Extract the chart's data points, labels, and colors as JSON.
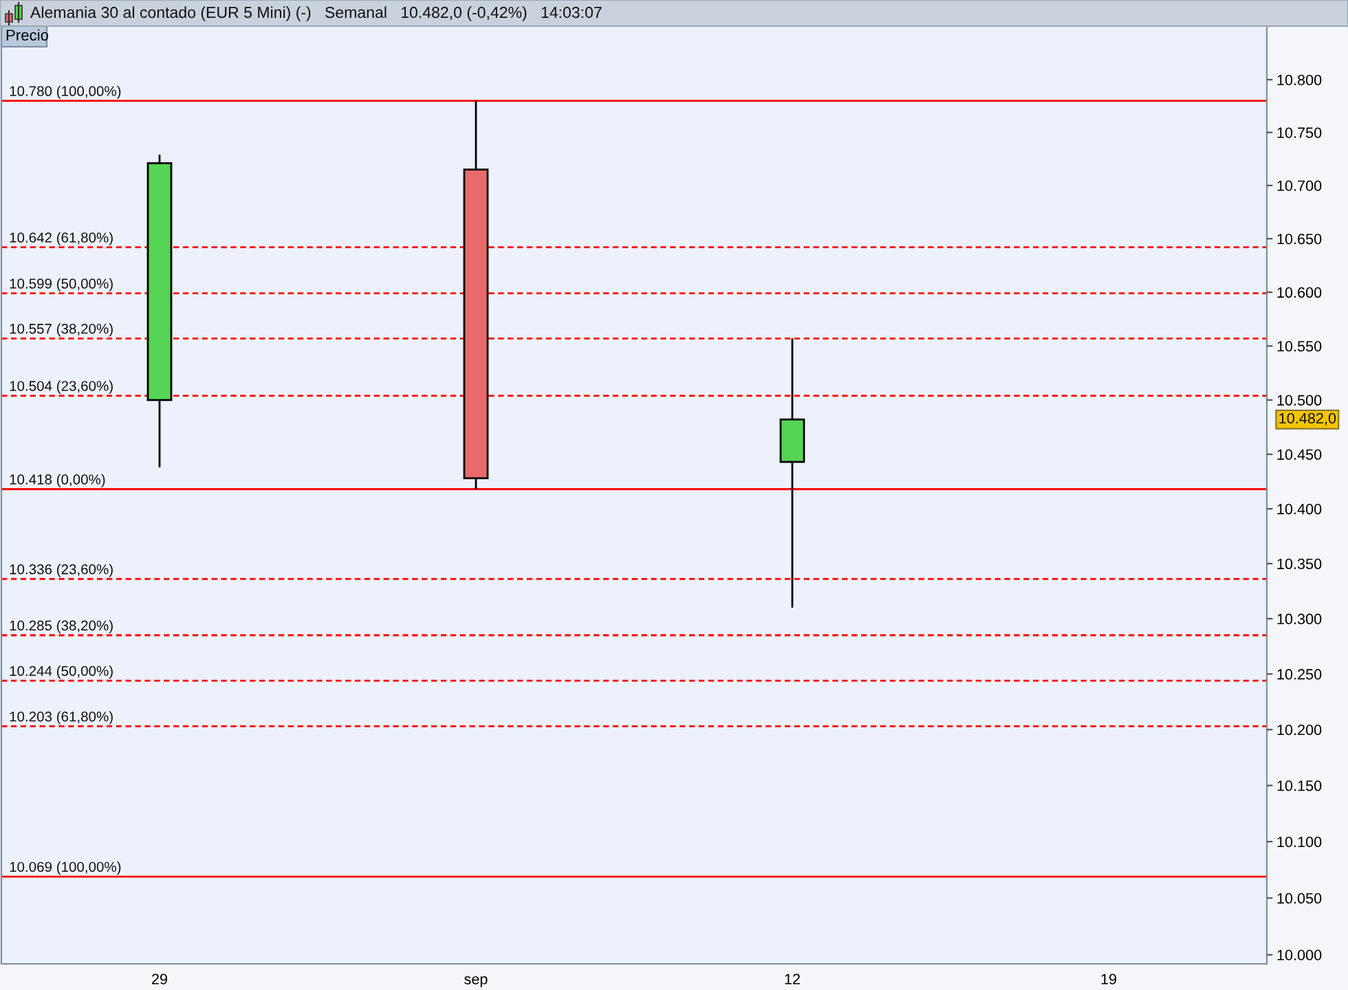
{
  "chart_data": {
    "type": "candlestick",
    "title": "Alemania 30 al contado (EUR 5 Mini) (-)   Semanal   10.482,0 (-0,42%)   14:03:07",
    "ylabel": "Precio",
    "categories": [
      "29",
      "sep",
      "12",
      "19"
    ],
    "ohlc": [
      [
        10500,
        10729,
        10438,
        10721
      ],
      [
        10715,
        10780,
        10418,
        10428
      ],
      [
        10443,
        10557,
        10310,
        10482
      ],
      null
    ],
    "colors": [
      "#55d455",
      "#e86a6a",
      "#55d455",
      null
    ],
    "log": true,
    "ylim": [
      9992,
      10851
    ],
    "yticks": [
      {
        "value": 10000,
        "label": "10.000"
      },
      {
        "value": 10050,
        "label": "10.050"
      },
      {
        "value": 10100,
        "label": "10.100"
      },
      {
        "value": 10150,
        "label": "10.150"
      },
      {
        "value": 10200,
        "label": "10.200"
      },
      {
        "value": 10250,
        "label": "10.250"
      },
      {
        "value": 10300,
        "label": "10.300"
      },
      {
        "value": 10350,
        "label": "10.350"
      },
      {
        "value": 10400,
        "label": "10.400"
      },
      {
        "value": 10450,
        "label": "10.450"
      },
      {
        "value": 10500,
        "label": "10.500"
      },
      {
        "value": 10550,
        "label": "10.550"
      },
      {
        "value": 10600,
        "label": "10.600"
      },
      {
        "value": 10650,
        "label": "10.650"
      },
      {
        "value": 10700,
        "label": "10.700"
      },
      {
        "value": 10750,
        "label": "10.750"
      },
      {
        "value": 10800,
        "label": "10.800"
      }
    ],
    "ref_lines": [
      {
        "axis": "y",
        "value": 10780,
        "label": "10.780 (100,00%)",
        "color": "#ff0000",
        "line_style": "solid"
      },
      {
        "axis": "y",
        "value": 10642,
        "label": "10.642 (61,80%)",
        "color": "#ff0000",
        "line_style": "dashed"
      },
      {
        "axis": "y",
        "value": 10599,
        "label": "10.599 (50,00%)",
        "color": "#ff0000",
        "line_style": "dashed"
      },
      {
        "axis": "y",
        "value": 10557,
        "label": "10.557 (38,20%)",
        "color": "#ff0000",
        "line_style": "dashed"
      },
      {
        "axis": "y",
        "value": 10504,
        "label": "10.504 (23,60%)",
        "color": "#ff0000",
        "line_style": "dashed"
      },
      {
        "axis": "y",
        "value": 10418,
        "label": "10.418 (0,00%)",
        "color": "#ff0000",
        "line_style": "solid"
      },
      {
        "axis": "y",
        "value": 10336,
        "label": "10.336 (23,60%)",
        "color": "#ff0000",
        "line_style": "dashed"
      },
      {
        "axis": "y",
        "value": 10285,
        "label": "10.285 (38,20%)",
        "color": "#ff0000",
        "line_style": "dashed"
      },
      {
        "axis": "y",
        "value": 10244,
        "label": "10.244 (50,00%)",
        "color": "#ff0000",
        "line_style": "dashed"
      },
      {
        "axis": "y",
        "value": 10203,
        "label": "10.203 (61,80%)",
        "color": "#ff0000",
        "line_style": "dashed"
      },
      {
        "axis": "y",
        "value": 10069,
        "label": "10.069 (100,00%)",
        "color": "#ff0000",
        "line_style": "solid"
      }
    ],
    "annotations": [
      "10.482,0"
    ]
  }
}
